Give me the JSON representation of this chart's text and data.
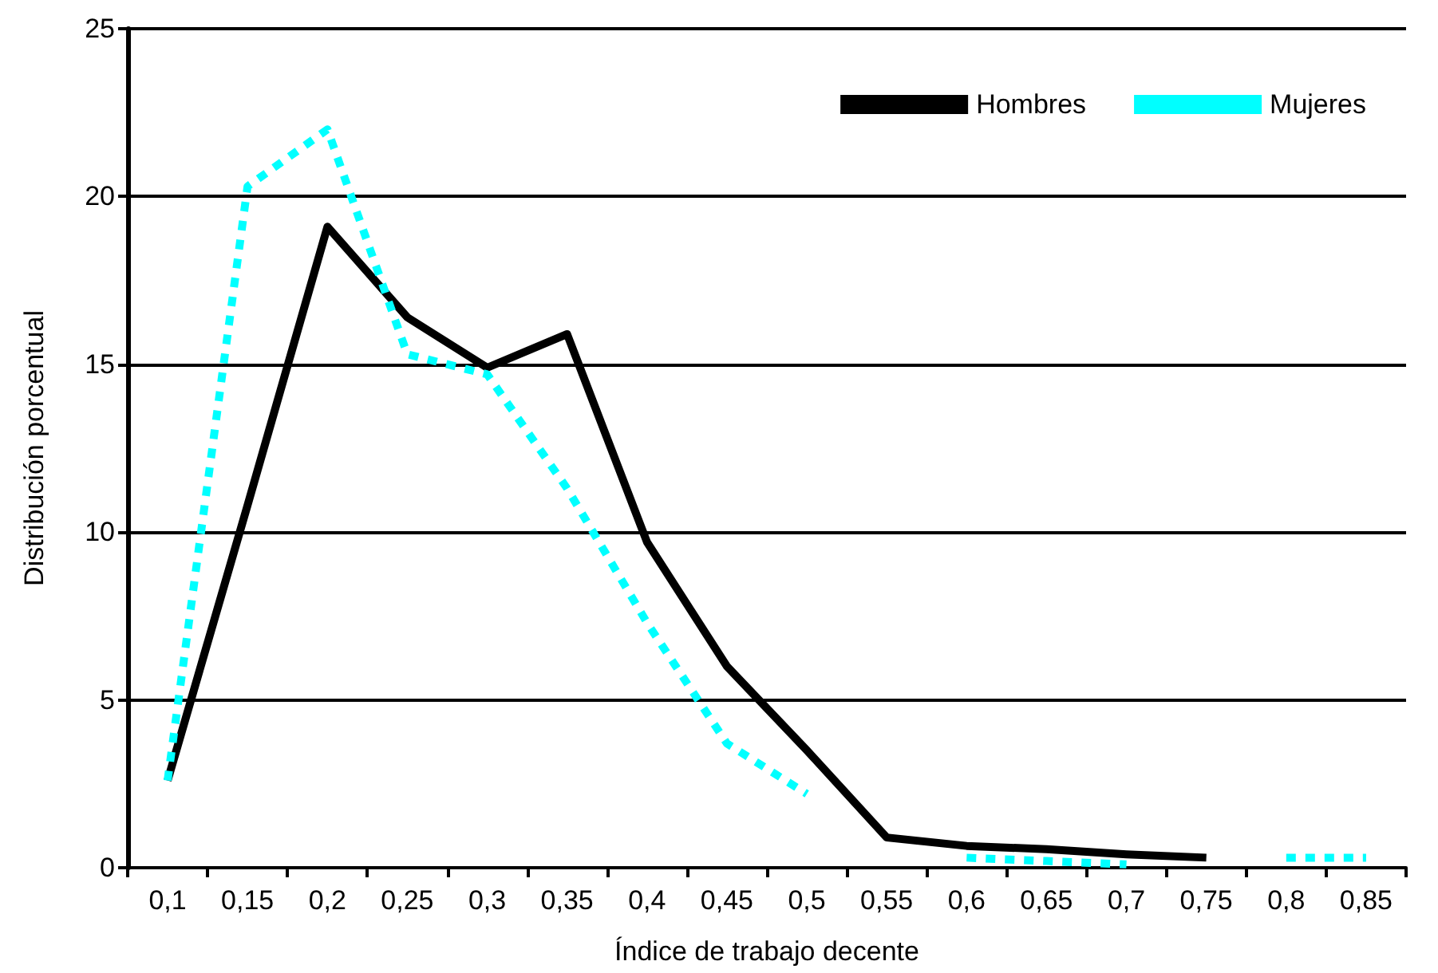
{
  "chart_data": {
    "type": "line",
    "xlabel": "Índice de trabajo decente",
    "ylabel": "Distribución porcentual",
    "categories": [
      "0,1",
      "0,15",
      "0,2",
      "0,25",
      "0,3",
      "0,35",
      "0,4",
      "0,45",
      "0,5",
      "0,55",
      "0,6",
      "0,65",
      "0,7",
      "0,75",
      "0,8",
      "0,85"
    ],
    "series": [
      {
        "name": "Hombres",
        "color": "#000000",
        "line_style": "solid",
        "values": [
          2.6,
          10.8,
          19.1,
          16.4,
          14.9,
          15.9,
          9.7,
          6.0,
          3.5,
          0.9,
          0.65,
          0.55,
          0.4,
          0.3,
          null,
          null
        ]
      },
      {
        "name": "Mujeres",
        "color": "#00ffff",
        "line_style": "dotted",
        "values": [
          2.6,
          20.3,
          22.0,
          15.3,
          14.7,
          11.3,
          7.3,
          3.7,
          2.2,
          null,
          0.3,
          0.2,
          0.1,
          null,
          0.3,
          0.3
        ]
      }
    ],
    "ylim": [
      0,
      25
    ],
    "yticks": [
      0,
      5,
      10,
      15,
      20,
      25
    ],
    "grid": "y",
    "legend": "top right",
    "marker": "none"
  }
}
